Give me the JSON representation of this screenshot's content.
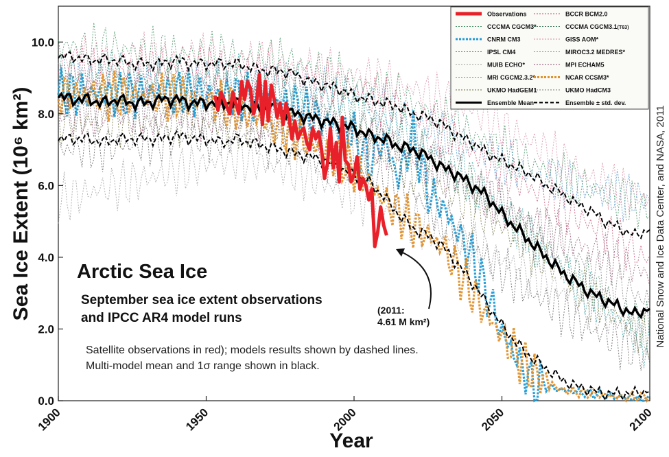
{
  "chart_data": {
    "type": "line",
    "title": "Arctic Sea Ice",
    "subtitle_lines": [
      "September sea ice extent observations",
      "and IPCC AR4 model runs"
    ],
    "notes": [
      "Satellite observations in red); models results shown by dashed lines.",
      "Multi-model mean and 1σ range shown in black."
    ],
    "xlabel": "Year",
    "ylabel": "Sea Ice Extent (10⁶ km²)",
    "xlim": [
      1900,
      2100
    ],
    "ylim": [
      0,
      11
    ],
    "x_ticks": [
      "1900",
      "1950",
      "2000",
      "2050",
      "2100"
    ],
    "y_ticks": [
      "0.0",
      "2.0",
      "4.0",
      "6.0",
      "8.0",
      "10.0"
    ],
    "grid": false,
    "legend_position": "top-right",
    "credit": "National Snow and Ice Data Center, and NASA, 2011",
    "annotation": {
      "lines": [
        "(2011:",
        "4.61 M km²)"
      ],
      "x": 2011,
      "y": 4.61
    },
    "observations": {
      "name": "Observations",
      "color": "#e8202a",
      "x": [
        1953,
        1954,
        1955,
        1956,
        1957,
        1958,
        1959,
        1960,
        1961,
        1962,
        1963,
        1964,
        1965,
        1966,
        1967,
        1968,
        1969,
        1970,
        1971,
        1972,
        1973,
        1974,
        1975,
        1976,
        1977,
        1978,
        1979,
        1980,
        1981,
        1982,
        1983,
        1984,
        1985,
        1986,
        1987,
        1988,
        1989,
        1990,
        1991,
        1992,
        1993,
        1994,
        1995,
        1996,
        1997,
        1998,
        1999,
        2000,
        2001,
        2002,
        2003,
        2004,
        2005,
        2006,
        2007,
        2008,
        2009,
        2010,
        2011
      ],
      "values": [
        8.5,
        8.1,
        8.6,
        8.4,
        8.2,
        8.0,
        8.6,
        8.3,
        8.0,
        8.9,
        8.4,
        8.9,
        8.7,
        8.0,
        8.3,
        9.1,
        7.7,
        8.9,
        7.8,
        8.8,
        8.4,
        7.9,
        8.3,
        7.7,
        8.3,
        7.9,
        7.3,
        7.8,
        7.3,
        7.5,
        7.6,
        7.2,
        7.0,
        7.6,
        7.3,
        7.5,
        7.0,
        6.2,
        6.6,
        7.6,
        6.5,
        7.2,
        6.1,
        7.9,
        6.7,
        6.6,
        6.1,
        6.3,
        6.8,
        5.9,
        6.2,
        6.0,
        5.6,
        5.9,
        4.3,
        4.7,
        5.4,
        4.9,
        4.61
      ]
    },
    "ensemble_mean": {
      "name": "Ensemble Mean",
      "x": [
        1900,
        1905,
        1910,
        1915,
        1920,
        1925,
        1930,
        1935,
        1940,
        1945,
        1950,
        1955,
        1960,
        1965,
        1970,
        1975,
        1980,
        1985,
        1990,
        1995,
        2000,
        2005,
        2010,
        2015,
        2020,
        2025,
        2030,
        2035,
        2040,
        2045,
        2050,
        2055,
        2060,
        2065,
        2070,
        2075,
        2080,
        2085,
        2090,
        2095,
        2100
      ],
      "values": [
        8.5,
        8.4,
        8.4,
        8.3,
        8.4,
        8.3,
        8.3,
        8.4,
        8.4,
        8.3,
        8.3,
        8.3,
        8.3,
        8.2,
        8.2,
        8.1,
        8.0,
        7.9,
        7.8,
        7.7,
        7.6,
        7.4,
        7.3,
        7.1,
        7.0,
        6.8,
        6.5,
        6.3,
        6.0,
        5.7,
        5.2,
        4.8,
        4.4,
        4.0,
        3.6,
        3.3,
        3.0,
        2.8,
        2.6,
        2.4,
        2.6
      ]
    },
    "ensemble_plus_std": {
      "name": "Ensemble ± std. dev.",
      "x": [
        1900,
        1905,
        1910,
        1915,
        1920,
        1925,
        1930,
        1935,
        1940,
        1945,
        1950,
        1955,
        1960,
        1965,
        1970,
        1975,
        1980,
        1985,
        1990,
        1995,
        2000,
        2005,
        2010,
        2015,
        2020,
        2025,
        2030,
        2035,
        2040,
        2045,
        2050,
        2055,
        2060,
        2065,
        2070,
        2075,
        2080,
        2085,
        2090,
        2095,
        2100
      ],
      "values": [
        9.6,
        9.6,
        9.5,
        9.5,
        9.5,
        9.4,
        9.4,
        9.4,
        9.5,
        9.4,
        9.4,
        9.4,
        9.4,
        9.3,
        9.2,
        9.2,
        9.1,
        8.9,
        8.8,
        8.7,
        8.5,
        8.4,
        8.3,
        8.2,
        8.0,
        7.9,
        7.7,
        7.4,
        7.2,
        6.9,
        6.7,
        6.5,
        6.3,
        6.0,
        5.8,
        5.5,
        5.3,
        5.0,
        4.8,
        4.6,
        4.8
      ]
    },
    "ensemble_minus_std": {
      "name": "Ensemble ± std. dev.",
      "x": [
        1900,
        1905,
        1910,
        1915,
        1920,
        1925,
        1930,
        1935,
        1940,
        1945,
        1950,
        1955,
        1960,
        1965,
        1970,
        1975,
        1980,
        1985,
        1990,
        1995,
        2000,
        2005,
        2010,
        2015,
        2020,
        2025,
        2030,
        2035,
        2040,
        2045,
        2050,
        2055,
        2060,
        2065,
        2070,
        2075,
        2080,
        2085,
        2090,
        2095,
        2100
      ],
      "values": [
        7.3,
        7.3,
        7.3,
        7.2,
        7.3,
        7.3,
        7.3,
        7.3,
        7.4,
        7.3,
        7.3,
        7.2,
        7.3,
        7.2,
        7.1,
        7.0,
        6.9,
        6.8,
        6.7,
        6.5,
        6.3,
        6.1,
        5.7,
        5.2,
        4.8,
        4.6,
        4.3,
        3.8,
        3.3,
        2.7,
        2.1,
        1.6,
        1.2,
        0.9,
        0.6,
        0.4,
        0.3,
        0.2,
        0.2,
        0.2,
        0.3
      ]
    },
    "models": [
      {
        "name": "CCCMA CGCM3*",
        "color": "#3a8a5a",
        "x": [
          1900,
          1920,
          1940,
          1960,
          1980,
          2000,
          2020,
          2040,
          2060,
          2080,
          2100
        ],
        "values": [
          9.9,
          9.8,
          9.7,
          9.6,
          9.4,
          8.9,
          8.3,
          7.4,
          6.6,
          5.9,
          5.3
        ]
      },
      {
        "name": "CNRM CM3",
        "color": "#1e9bd7",
        "x": [
          1900,
          1920,
          1940,
          1960,
          1980,
          2000,
          2005,
          2010,
          2015,
          2020,
          2025,
          2030,
          2035,
          2040,
          2045,
          2050,
          2055,
          2060,
          2070,
          2080,
          2090,
          2100
        ],
        "values": [
          8.6,
          8.5,
          8.6,
          8.5,
          8.2,
          7.4,
          6.6,
          7.3,
          6.2,
          7.4,
          5.8,
          5.4,
          4.7,
          4.0,
          3.0,
          1.9,
          1.2,
          0.5,
          0.3,
          0.2,
          0.1,
          0.0
        ]
      },
      {
        "name": "IPSL CM4",
        "color": "#555555",
        "x": [
          1900,
          1920,
          1940,
          1960,
          1980,
          2000,
          2020,
          2040,
          2060,
          2080,
          2100
        ],
        "values": [
          7.0,
          7.1,
          7.3,
          7.4,
          7.0,
          6.5,
          5.8,
          4.3,
          3.0,
          2.0,
          1.2
        ]
      },
      {
        "name": "MUIB ECHO*",
        "color": "#999999",
        "x": [
          1900,
          1920,
          1940,
          1960,
          1980,
          2000,
          2020,
          2040,
          2060,
          2080,
          2100
        ],
        "values": [
          5.6,
          6.0,
          6.4,
          6.8,
          6.4,
          5.7,
          5.0,
          4.3,
          3.5,
          2.6,
          1.8
        ]
      },
      {
        "name": "MRI CGCM2.3.2*",
        "color": "#4a8fc4",
        "x": [
          1900,
          1920,
          1940,
          1960,
          1980,
          2000,
          2020,
          2040,
          2060,
          2080,
          2100
        ],
        "values": [
          8.9,
          8.9,
          8.9,
          8.8,
          8.7,
          8.5,
          7.8,
          7.1,
          6.3,
          5.9,
          5.6
        ]
      },
      {
        "name": "UKMO HadGEM1",
        "color": "#6b6b3a",
        "x": [
          1900,
          1920,
          1940,
          1960,
          1980,
          2000,
          2020,
          2040,
          2060,
          2080,
          2100
        ],
        "values": [
          7.8,
          7.8,
          7.8,
          7.7,
          7.5,
          7.1,
          6.4,
          5.4,
          4.2,
          2.9,
          1.7
        ]
      },
      {
        "name": "BCCR BCM2.0",
        "color": "#c04a6a",
        "x": [
          1900,
          1920,
          1940,
          1960,
          1980,
          2000,
          2020,
          2040,
          2060,
          2080,
          2100
        ],
        "values": [
          9.3,
          9.2,
          9.3,
          9.2,
          9.0,
          8.7,
          8.0,
          6.9,
          5.9,
          4.9,
          3.9
        ]
      },
      {
        "name": "CCCMA CGCM3.1(T63)",
        "color": "#2f6f4f",
        "x": [
          1900,
          1920,
          1940,
          1960,
          1980,
          2000,
          2020,
          2040,
          2060,
          2080,
          2100
        ],
        "values": [
          8.9,
          8.8,
          8.8,
          8.7,
          8.4,
          7.9,
          7.1,
          6.0,
          4.5,
          3.2,
          2.0
        ]
      },
      {
        "name": "GISS AOM*",
        "color": "#d48aa0",
        "x": [
          1900,
          1920,
          1940,
          1960,
          1980,
          2000,
          2020,
          2040,
          2060,
          2080,
          2100
        ],
        "values": [
          9.4,
          9.5,
          9.6,
          9.5,
          9.3,
          9.1,
          8.7,
          8.1,
          7.2,
          6.2,
          5.6
        ]
      },
      {
        "name": "MIROC3.2 MEDRES*",
        "color": "#3aa0a0",
        "x": [
          1900,
          1920,
          1940,
          1960,
          1980,
          2000,
          2020,
          2040,
          2060,
          2080,
          2100
        ],
        "values": [
          9.1,
          9.1,
          9.0,
          9.0,
          8.8,
          8.3,
          7.4,
          6.1,
          4.5,
          2.9,
          1.5
        ]
      },
      {
        "name": "MPI ECHAM5",
        "color": "#8a4a6a",
        "x": [
          1900,
          1920,
          1940,
          1960,
          1980,
          2000,
          2020,
          2040,
          2060,
          2080,
          2100
        ],
        "values": [
          8.0,
          8.0,
          8.0,
          7.9,
          7.8,
          7.4,
          6.8,
          5.9,
          5.0,
          4.2,
          3.5
        ]
      },
      {
        "name": "NCAR CCSM3*",
        "color": "#e0902a",
        "x": [
          1900,
          1920,
          1940,
          1960,
          1980,
          2000,
          2010,
          2020,
          2030,
          2040,
          2050,
          2060,
          2070,
          2080,
          2090,
          2100
        ],
        "values": [
          8.6,
          8.5,
          8.5,
          8.2,
          7.4,
          6.5,
          5.6,
          4.9,
          4.3,
          3.0,
          1.8,
          0.8,
          0.3,
          0.2,
          0.1,
          0.1
        ]
      },
      {
        "name": "UKMO HadCM3",
        "color": "#7a7a7a",
        "x": [
          1900,
          1920,
          1940,
          1960,
          1980,
          2000,
          2020,
          2040,
          2060,
          2080,
          2100
        ],
        "values": [
          8.2,
          8.2,
          8.1,
          8.1,
          7.9,
          7.6,
          7.0,
          6.0,
          4.9,
          3.8,
          2.7
        ]
      }
    ],
    "legend": {
      "left": [
        {
          "label": "Observations",
          "color": "#e8202a",
          "style": "obs"
        },
        {
          "label": "CCCMA CGCM3*",
          "color": "#3a8a5a",
          "style": "thin"
        },
        {
          "label": "CNRM CM3",
          "color": "#1e9bd7",
          "style": "thick"
        },
        {
          "label": "IPSL CM4",
          "color": "#555555",
          "style": "thin"
        },
        {
          "label": "MUIB ECHO*",
          "color": "#999999",
          "style": "thin"
        },
        {
          "label": "MRI CGCM2.3.2*",
          "color": "#4a8fc4",
          "style": "thin"
        },
        {
          "label": "UKMO HadGEM1",
          "color": "#6b6b3a",
          "style": "thin"
        },
        {
          "label": "Ensemble Mean",
          "color": "#000000",
          "style": "mean"
        }
      ],
      "right": [
        {
          "label": "BCCR BCM2.0",
          "color": "#c04a6a",
          "style": "thin"
        },
        {
          "label": "CCCMA CGCM3.1",
          "suffix": "(T63)",
          "color": "#2f6f4f",
          "style": "thin"
        },
        {
          "label": "GISS AOM*",
          "color": "#d48aa0",
          "style": "thin"
        },
        {
          "label": "MIROC3.2 MEDRES*",
          "color": "#3aa0a0",
          "style": "thin"
        },
        {
          "label": "MPI ECHAM5",
          "color": "#8a4a6a",
          "style": "thin"
        },
        {
          "label": "NCAR CCSM3*",
          "color": "#e0902a",
          "style": "thick"
        },
        {
          "label": "UKMO HadCM3",
          "color": "#7a7a7a",
          "style": "thin"
        },
        {
          "label": "Ensemble ± std. dev.",
          "color": "#000000",
          "style": "std"
        }
      ]
    }
  }
}
